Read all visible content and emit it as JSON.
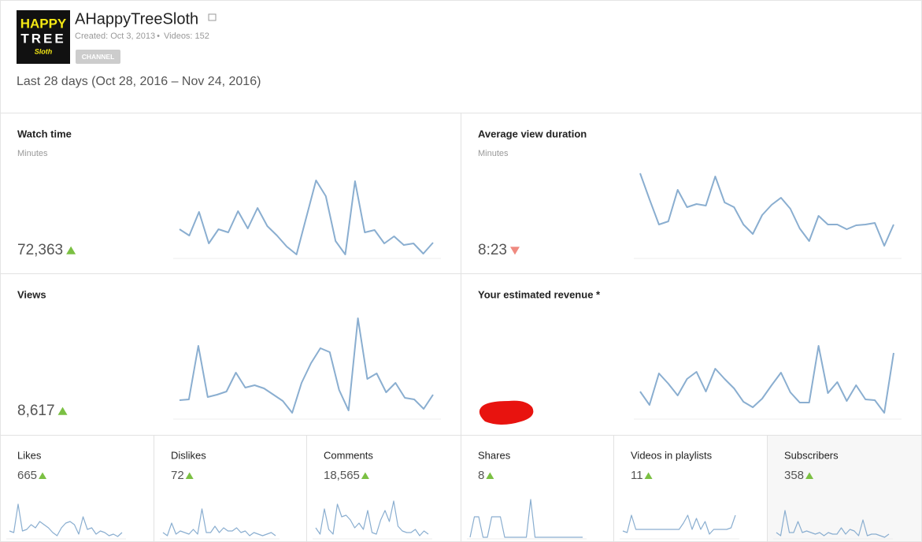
{
  "header": {
    "logo": [
      "HAPPY",
      "TREE",
      "Sloth"
    ],
    "channel_name": "AHappyTreeSloth",
    "created": "Created: Oct 3, 2013",
    "separator": "•",
    "videos": "Videos: 152",
    "badge": "CHANNEL"
  },
  "period": "Last 28 days (Oct 28, 2016 – Nov 24, 2016)",
  "metrics": [
    {
      "title": "Watch time",
      "unit": "Minutes",
      "value": "72,363",
      "trend": "up",
      "sparkline": [
        35,
        27,
        57,
        17,
        35,
        31,
        58,
        36,
        62,
        39,
        27,
        13,
        3,
        50,
        97,
        77,
        20,
        3,
        96,
        31,
        34,
        17,
        26,
        15,
        17,
        4,
        18
      ]
    },
    {
      "title": "Average view duration",
      "unit": "Minutes",
      "value": "8:23",
      "trend": "down",
      "sparkline": [
        106,
        73,
        41,
        45,
        85,
        63,
        67,
        65,
        102,
        69,
        63,
        41,
        29,
        53,
        66,
        75,
        61,
        36,
        20,
        52,
        41,
        41,
        35,
        40,
        41,
        43,
        14,
        41
      ]
    },
    {
      "title": "Views",
      "value": "8,617",
      "trend": "up",
      "sparkline": [
        22,
        23,
        91,
        26,
        29,
        33,
        57,
        38,
        41,
        37,
        29,
        21,
        6,
        44,
        69,
        88,
        83,
        35,
        9,
        126,
        49,
        56,
        32,
        44,
        25,
        23,
        11,
        29
      ]
    },
    {
      "title": "Your estimated revenue *",
      "sparkline": [
        33,
        16,
        56,
        43,
        28,
        49,
        58,
        33,
        62,
        49,
        37,
        20,
        13,
        24,
        41,
        57,
        32,
        19,
        19,
        91,
        31,
        45,
        21,
        41,
        23,
        22,
        6,
        82
      ]
    },
    {
      "title": "Likes",
      "value": "665",
      "trend": "up",
      "sparkline": [
        8,
        6,
        42,
        8,
        10,
        16,
        12,
        20,
        16,
        12,
        6,
        2,
        12,
        18,
        20,
        16,
        4,
        26,
        10,
        12,
        4,
        8,
        6,
        2,
        4,
        1,
        6
      ]
    },
    {
      "title": "Dislikes",
      "value": "72",
      "trend": "up",
      "sparkline": [
        6,
        2,
        18,
        4,
        8,
        6,
        4,
        10,
        4,
        36,
        6,
        6,
        14,
        6,
        12,
        8,
        8,
        12,
        6,
        8,
        2,
        6,
        4,
        2,
        4,
        6,
        2
      ]
    },
    {
      "title": "Comments",
      "value": "18,565",
      "trend": "up",
      "sparkline": [
        12,
        4,
        36,
        10,
        4,
        42,
        26,
        28,
        22,
        12,
        18,
        10,
        34,
        6,
        4,
        22,
        34,
        20,
        46,
        14,
        8,
        6,
        6,
        10,
        2,
        8,
        4
      ]
    },
    {
      "title": "Shares",
      "value": "8",
      "trend": "up",
      "sparkline": [
        0,
        26,
        26,
        0,
        0,
        26,
        26,
        26,
        0,
        0,
        0,
        0,
        0,
        0,
        48,
        0,
        0,
        0,
        0,
        0,
        0,
        0,
        0,
        0,
        0,
        0,
        0
      ]
    },
    {
      "title": "Videos in playlists",
      "value": "11",
      "trend": "up",
      "sparkline": [
        8,
        6,
        28,
        10,
        10,
        10,
        10,
        10,
        10,
        10,
        10,
        10,
        10,
        10,
        18,
        28,
        10,
        24,
        10,
        20,
        4,
        10,
        10,
        10,
        10,
        12,
        28
      ]
    },
    {
      "title": "Subscribers",
      "value": "358",
      "trend": "up",
      "sparkline": [
        6,
        2,
        34,
        6,
        6,
        20,
        6,
        8,
        6,
        4,
        6,
        2,
        6,
        4,
        4,
        12,
        4,
        10,
        8,
        2,
        22,
        2,
        4,
        4,
        2,
        0,
        4
      ]
    }
  ]
}
